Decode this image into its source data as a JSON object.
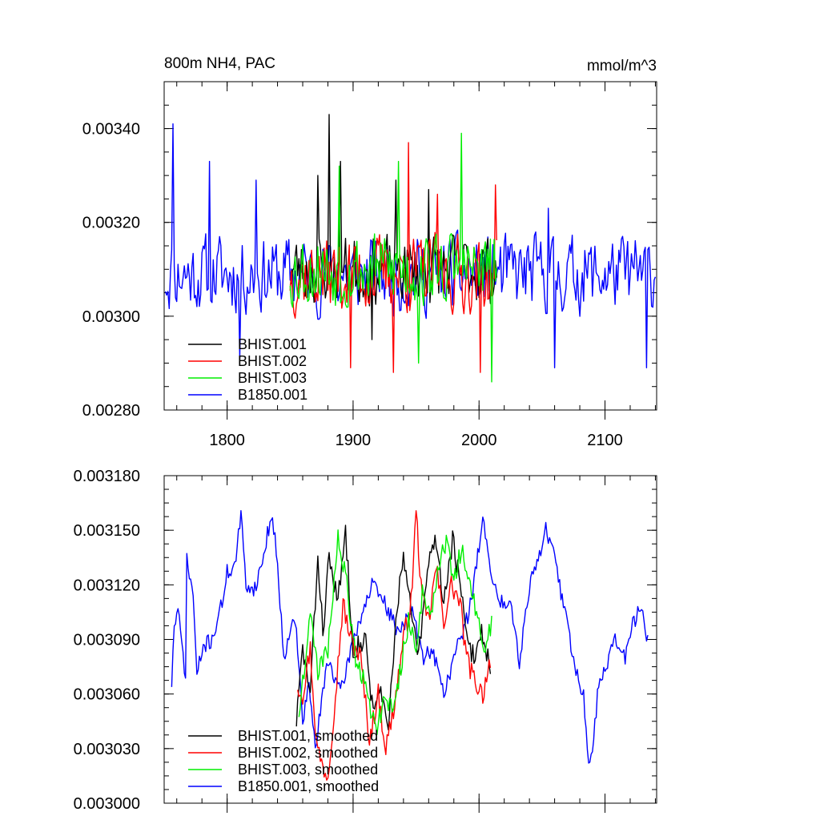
{
  "chart_data": [
    {
      "type": "line",
      "title": "800m NH4, PAC",
      "units": "mmol/m^3",
      "xlim": [
        1750,
        2141
      ],
      "ylim": [
        0.0028,
        0.0035
      ],
      "x_ticks": [
        1800,
        1900,
        2000,
        2100
      ],
      "y_ticks": [
        0.0028,
        0.003,
        0.0032,
        0.0034
      ],
      "y_tick_labels": [
        "0.00280",
        "0.00300",
        "0.00320",
        "0.00340"
      ],
      "grid": false,
      "legend_position": "bottom-left",
      "series": [
        {
          "name": "B1850.001",
          "color": "#0000ff",
          "x_start": 1751,
          "x_end": 2140,
          "mean": 0.00309,
          "amplitude": 0.00011,
          "seed": 11,
          "peaks": [
            [
              1757,
              0.00341
            ],
            [
              1786,
              0.00333
            ],
            [
              1823,
              0.00329
            ],
            [
              2055,
              0.00323
            ],
            [
              2060,
              0.00289
            ],
            [
              2133,
              0.00289
            ],
            [
              1810,
              0.00291
            ]
          ]
        },
        {
          "name": "BHIST.001",
          "color": "#000000",
          "x_start": 1850,
          "x_end": 2014,
          "mean": 0.0031,
          "amplitude": 0.0001,
          "seed": 23,
          "peaks": [
            [
              1881,
              0.00343
            ],
            [
              1872,
              0.0033
            ],
            [
              1890,
              0.00333
            ],
            [
              1934,
              0.00329
            ],
            [
              1960,
              0.00327
            ],
            [
              1915,
              0.00295
            ]
          ]
        },
        {
          "name": "BHIST.002",
          "color": "#ff0000",
          "x_start": 1850,
          "x_end": 2014,
          "mean": 0.00309,
          "amplitude": 0.00011,
          "seed": 37,
          "peaks": [
            [
              1944,
              0.00337
            ],
            [
              1932,
              0.00288
            ],
            [
              1898,
              0.00289
            ],
            [
              2001,
              0.00288
            ],
            [
              2013,
              0.00328
            ],
            [
              1967,
              0.00326
            ]
          ]
        },
        {
          "name": "BHIST.003",
          "color": "#00ee00",
          "x_start": 1850,
          "x_end": 2014,
          "mean": 0.0031,
          "amplitude": 0.00011,
          "seed": 53,
          "peaks": [
            [
              1986,
              0.00339
            ],
            [
              1936,
              0.00333
            ],
            [
              1889,
              0.00332
            ],
            [
              2010,
              0.00286
            ],
            [
              1952,
              0.0029
            ]
          ]
        }
      ]
    },
    {
      "type": "line",
      "xlim": [
        1750,
        2141
      ],
      "ylim": [
        0.003,
        0.00318
      ],
      "x_ticks": [
        1800,
        1900,
        2000,
        2100
      ],
      "y_ticks": [
        0.003,
        0.00303,
        0.00306,
        0.00309,
        0.00312,
        0.00315,
        0.00318
      ],
      "y_tick_labels": [
        "0.003000",
        "0.003030",
        "0.003060",
        "0.003090",
        "0.003120",
        "0.003150",
        "0.003180"
      ],
      "grid": false,
      "legend_position": "bottom-left",
      "series": [
        {
          "name": "B1850.001, smoothed",
          "color": "#0000ff",
          "x_start": 1756,
          "x_end": 2134,
          "wiggle": 4.5e-06,
          "seed": 71,
          "keypoints": [
            [
              1756,
              0.003066
            ],
            [
              1758,
              0.003098
            ],
            [
              1761,
              0.003105
            ],
            [
              1767,
              0.00307
            ],
            [
              1768,
              0.003133
            ],
            [
              1773,
              0.003115
            ],
            [
              1776,
              0.00307
            ],
            [
              1781,
              0.003086
            ],
            [
              1788,
              0.00309
            ],
            [
              1796,
              0.00311
            ],
            [
              1800,
              0.003127
            ],
            [
              1806,
              0.00313
            ],
            [
              1811,
              0.003158
            ],
            [
              1815,
              0.00312
            ],
            [
              1822,
              0.003118
            ],
            [
              1828,
              0.003133
            ],
            [
              1834,
              0.003155
            ],
            [
              1838,
              0.00315
            ],
            [
              1845,
              0.00308
            ],
            [
              1851,
              0.0031
            ],
            [
              1855,
              0.003095
            ],
            [
              1860,
              0.003045
            ],
            [
              1865,
              0.003065
            ],
            [
              1870,
              0.00303
            ],
            [
              1880,
              0.00308
            ],
            [
              1890,
              0.00306
            ],
            [
              1900,
              0.00309
            ],
            [
              1915,
              0.00312
            ],
            [
              1925,
              0.00311
            ],
            [
              1935,
              0.003095
            ],
            [
              1948,
              0.003105
            ],
            [
              1955,
              0.00308
            ],
            [
              1963,
              0.003085
            ],
            [
              1972,
              0.00306
            ],
            [
              1980,
              0.00308
            ],
            [
              1992,
              0.003105
            ],
            [
              1998,
              0.00313
            ],
            [
              2003,
              0.00316
            ],
            [
              2008,
              0.00313
            ],
            [
              2016,
              0.00311
            ],
            [
              2025,
              0.003112
            ],
            [
              2032,
              0.003078
            ],
            [
              2040,
              0.00312
            ],
            [
              2047,
              0.003135
            ],
            [
              2053,
              0.00315
            ],
            [
              2060,
              0.003135
            ],
            [
              2067,
              0.003108
            ],
            [
              2071,
              0.0031
            ],
            [
              2074,
              0.00308
            ],
            [
              2078,
              0.00307
            ],
            [
              2083,
              0.00306
            ],
            [
              2087,
              0.00302
            ],
            [
              2090,
              0.003025
            ],
            [
              2095,
              0.003068
            ],
            [
              2101,
              0.003076
            ],
            [
              2107,
              0.00309
            ],
            [
              2116,
              0.00308
            ],
            [
              2122,
              0.003098
            ],
            [
              2128,
              0.003108
            ],
            [
              2134,
              0.003088
            ]
          ]
        },
        {
          "name": "BHIST.001, smoothed",
          "color": "#000000",
          "x_start": 1855,
          "x_end": 2009,
          "wiggle": 6e-06,
          "seed": 83,
          "keypoints": [
            [
              1855,
              0.003045
            ],
            [
              1860,
              0.003085
            ],
            [
              1866,
              0.00306
            ],
            [
              1872,
              0.003135
            ],
            [
              1876,
              0.003095
            ],
            [
              1881,
              0.003135
            ],
            [
              1888,
              0.00311
            ],
            [
              1894,
              0.00315
            ],
            [
              1900,
              0.003085
            ],
            [
              1910,
              0.00309
            ],
            [
              1915,
              0.003055
            ],
            [
              1922,
              0.00306
            ],
            [
              1928,
              0.00304
            ],
            [
              1935,
              0.00311
            ],
            [
              1940,
              0.003135
            ],
            [
              1946,
              0.003105
            ],
            [
              1952,
              0.00308
            ],
            [
              1958,
              0.00312
            ],
            [
              1962,
              0.00314
            ],
            [
              1966,
              0.003145
            ],
            [
              1972,
              0.00311
            ],
            [
              1979,
              0.003145
            ],
            [
              1985,
              0.00312
            ],
            [
              1990,
              0.00309
            ],
            [
              1996,
              0.00308
            ],
            [
              2002,
              0.003095
            ],
            [
              2009,
              0.003075
            ]
          ]
        },
        {
          "name": "BHIST.002, smoothed",
          "color": "#ff0000",
          "x_start": 1856,
          "x_end": 2009,
          "wiggle": 6e-06,
          "seed": 97,
          "keypoints": [
            [
              1856,
              0.003065
            ],
            [
              1860,
              0.00306
            ],
            [
              1866,
              0.003085
            ],
            [
              1871,
              0.003032
            ],
            [
              1876,
              0.00302
            ],
            [
              1880,
              0.003015
            ],
            [
              1886,
              0.00306
            ],
            [
              1892,
              0.00311
            ],
            [
              1898,
              0.00309
            ],
            [
              1906,
              0.00308
            ],
            [
              1913,
              0.003035
            ],
            [
              1920,
              0.00306
            ],
            [
              1926,
              0.00303
            ],
            [
              1933,
              0.003055
            ],
            [
              1940,
              0.00309
            ],
            [
              1946,
              0.00311
            ],
            [
              1950,
              0.00316
            ],
            [
              1955,
              0.00311
            ],
            [
              1960,
              0.0031
            ],
            [
              1966,
              0.00313
            ],
            [
              1972,
              0.0031
            ],
            [
              1978,
              0.00312
            ],
            [
              1985,
              0.00311
            ],
            [
              1990,
              0.00308
            ],
            [
              1996,
              0.003068
            ],
            [
              2003,
              0.00306
            ],
            [
              2009,
              0.00308
            ]
          ]
        },
        {
          "name": "BHIST.003, smoothed",
          "color": "#00ee00",
          "x_start": 1857,
          "x_end": 2010,
          "wiggle": 6e-06,
          "seed": 109,
          "keypoints": [
            [
              1857,
              0.00305
            ],
            [
              1862,
              0.00308
            ],
            [
              1867,
              0.003105
            ],
            [
              1872,
              0.00307
            ],
            [
              1880,
              0.003085
            ],
            [
              1888,
              0.003145
            ],
            [
              1895,
              0.00312
            ],
            [
              1902,
              0.00308
            ],
            [
              1910,
              0.003065
            ],
            [
              1918,
              0.00304
            ],
            [
              1926,
              0.00306
            ],
            [
              1932,
              0.00305
            ],
            [
              1938,
              0.003075
            ],
            [
              1944,
              0.0031
            ],
            [
              1950,
              0.003085
            ],
            [
              1955,
              0.003115
            ],
            [
              1962,
              0.003105
            ],
            [
              1968,
              0.00313
            ],
            [
              1974,
              0.003145
            ],
            [
              1980,
              0.00312
            ],
            [
              1986,
              0.00314
            ],
            [
              1992,
              0.00312
            ],
            [
              1998,
              0.003105
            ],
            [
              2004,
              0.00308
            ],
            [
              2010,
              0.0031
            ]
          ]
        }
      ]
    }
  ]
}
